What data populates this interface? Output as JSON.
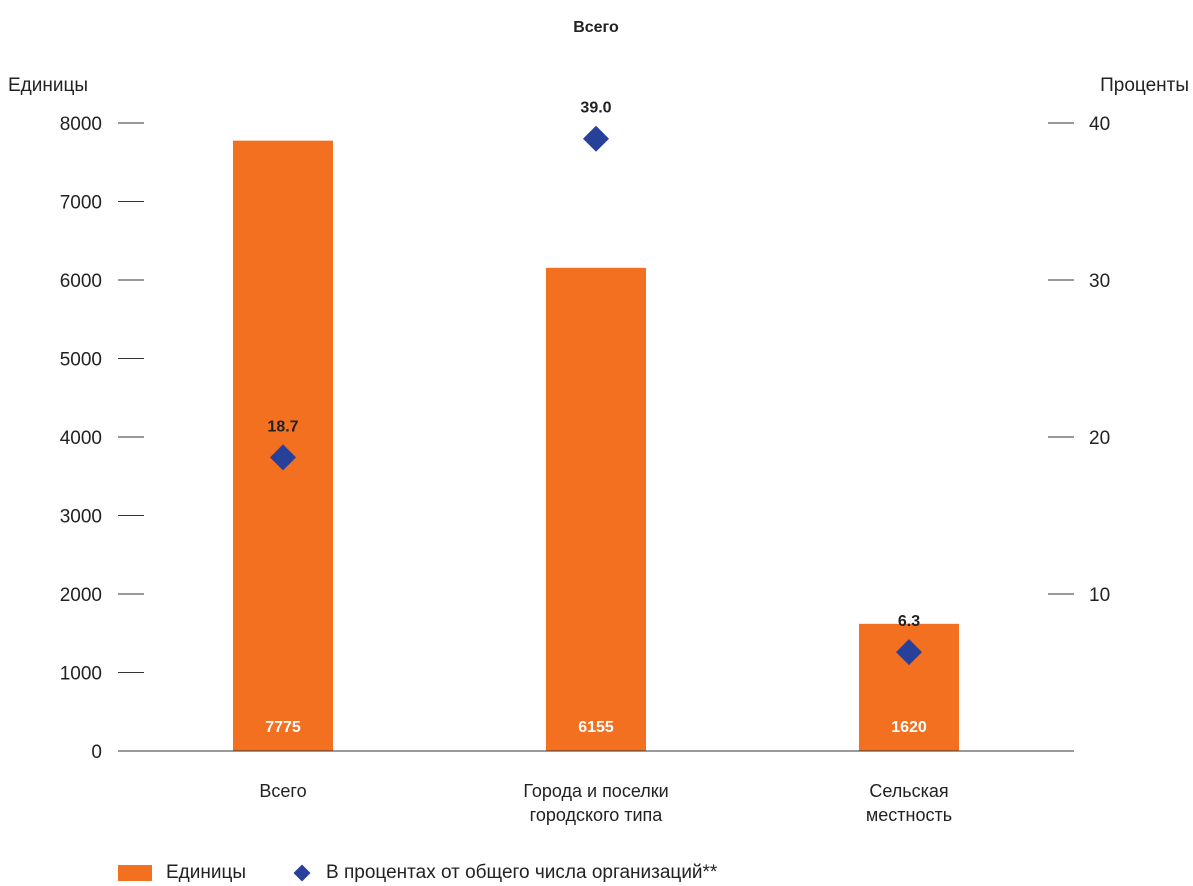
{
  "chart_data": {
    "type": "bar",
    "title": "Всего",
    "categories": [
      [
        "Всего"
      ],
      [
        "Города и поселки",
        "городского типа"
      ],
      [
        "Сельская",
        "местность"
      ]
    ],
    "y_left_label": "Единицы",
    "y_right_label": "Проценты",
    "y_left_lim": [
      0,
      8000
    ],
    "y_left_ticks": [
      0,
      1000,
      2000,
      3000,
      4000,
      5000,
      6000,
      7000,
      8000
    ],
    "y_right_lim": [
      0,
      40
    ],
    "y_right_ticks": [
      10,
      20,
      30,
      40
    ],
    "grid": false,
    "legend_position": "bottom-left",
    "series": [
      {
        "name": "Единицы",
        "type": "bar",
        "axis": "left",
        "color": "#f37021",
        "values": [
          7775,
          6155,
          1620
        ],
        "labels": [
          "7775",
          "6155",
          "1620"
        ]
      },
      {
        "name": "В процентах от общего числа организаций**",
        "type": "scatter",
        "marker": "diamond",
        "axis": "right",
        "color": "#27409a",
        "values": [
          18.7,
          39.0,
          6.3
        ],
        "labels": [
          "18.7",
          "39.0",
          "6.3"
        ]
      }
    ]
  }
}
